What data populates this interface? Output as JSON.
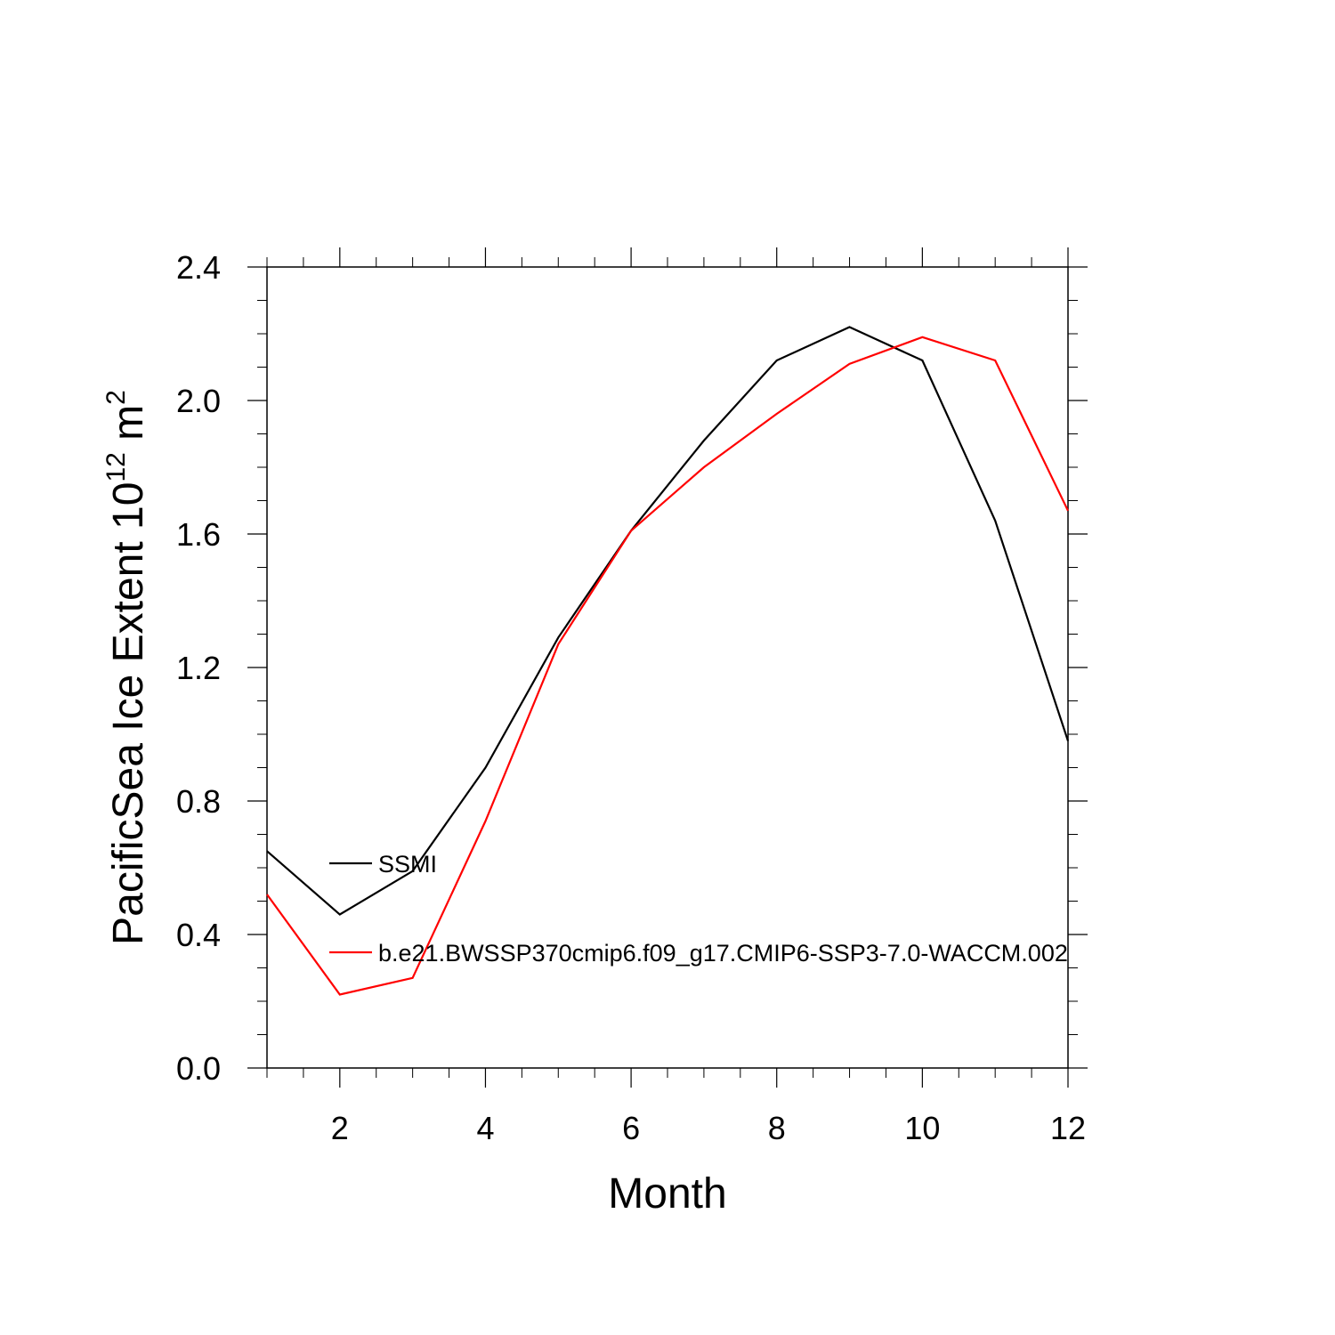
{
  "chart_data": {
    "type": "line",
    "title": "",
    "xlabel": "Month",
    "ylabel": "PacificSea Ice Extent 10",
    "ylabel_sup1": "12",
    "ylabel_unit": " m",
    "ylabel_sup2": "2",
    "xlim": [
      1,
      12
    ],
    "ylim": [
      0,
      2.4
    ],
    "xticks": [
      2,
      4,
      6,
      8,
      10,
      12
    ],
    "xtick_labels": [
      "2",
      "4",
      "6",
      "8",
      "10",
      "12"
    ],
    "yticks": [
      0,
      0.4,
      0.8,
      1.2,
      1.6,
      2.0,
      2.4
    ],
    "ytick_labels": [
      "0.0",
      "0.4",
      "0.8",
      "1.2",
      "1.6",
      "2.0",
      "2.4"
    ],
    "grid": false,
    "legend_position": "inside-left",
    "x": [
      1,
      2,
      3,
      4,
      5,
      6,
      7,
      8,
      9,
      10,
      11,
      12
    ],
    "series": [
      {
        "name": "SSMI",
        "color": "#000000",
        "values": [
          0.65,
          0.46,
          0.59,
          0.9,
          1.29,
          1.61,
          1.88,
          2.12,
          2.22,
          2.12,
          1.64,
          0.98
        ]
      },
      {
        "name": "b.e21.BWSSP370cmip6.f09_g17.CMIP6-SSP3-7.0-WACCM.002",
        "color": "#ff0000",
        "values": [
          0.52,
          0.22,
          0.27,
          0.74,
          1.27,
          1.61,
          1.8,
          1.96,
          2.11,
          2.19,
          2.12,
          1.67
        ]
      }
    ]
  }
}
